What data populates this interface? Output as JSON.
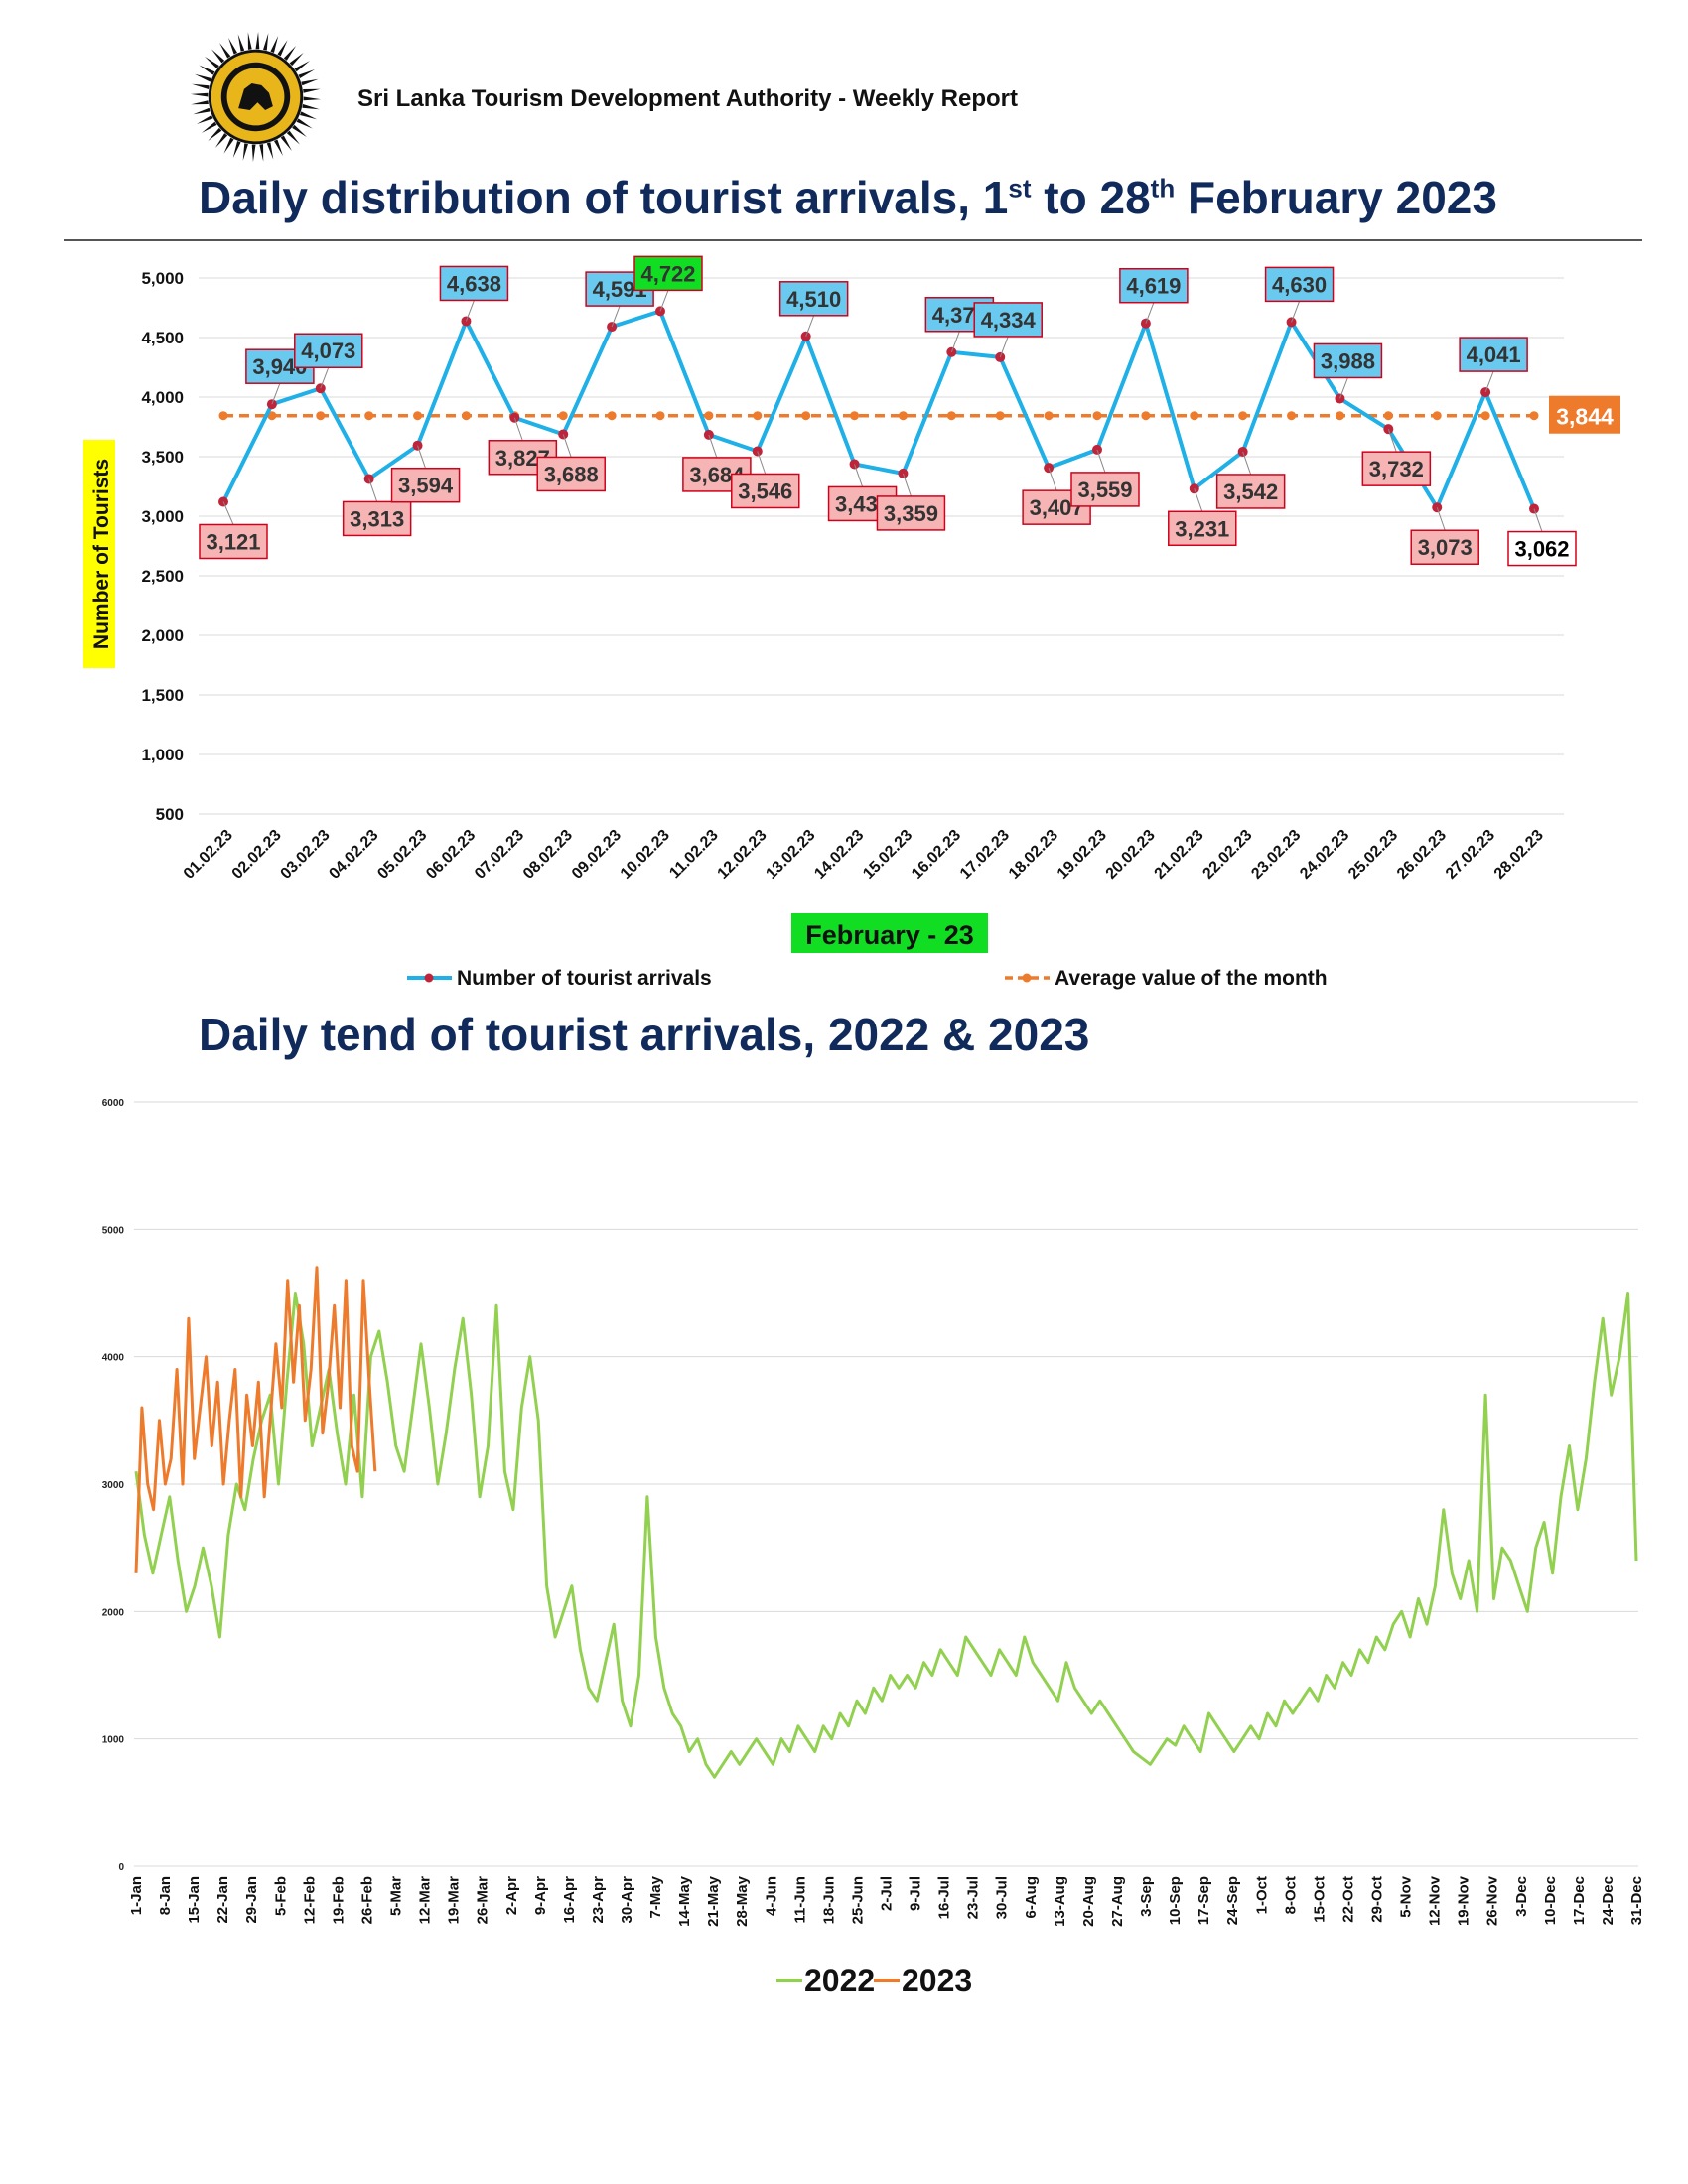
{
  "header": {
    "report_title": "Sri Lanka Tourism Development Authority - Weekly Report",
    "logo_text": "SRI LANKA TOURISM DEVELOPMENT AUTHORITY",
    "title1_pre": "Daily distribution of tourist arrivals, 1",
    "title1_sup1": "st",
    "title1_mid": " to 28",
    "title1_sup2": "th",
    "title1_post": " February 2023",
    "title2": "Daily tend of tourist arrivals, 2022 & 2023"
  },
  "colors": {
    "navy": "#102a5c",
    "arrivals_line": "#1fb0e8",
    "marker": "#c0243b",
    "average": "#ee7a2c",
    "high_box": "#69c9ef",
    "low_box": "#f6b4b4",
    "max_box": "#11dd22",
    "min_box": "#ffffff",
    "line_2022": "#92d050",
    "line_2023": "#ee7a2c"
  },
  "chart_data": [
    {
      "type": "line",
      "title": "Daily distribution of tourist arrivals, 1st to 28th February 2023",
      "xlabel": "February - 23",
      "ylabel": "Number of Tourists",
      "ylim": [
        500,
        5000
      ],
      "yticks": [
        "500",
        "1,000",
        "1,500",
        "2,000",
        "2,500",
        "3,000",
        "3,500",
        "4,000",
        "4,500",
        "5,000"
      ],
      "grid": true,
      "legend_placement": "bottom",
      "categories": [
        "01.02.23",
        "02.02.23",
        "03.02.23",
        "04.02.23",
        "05.02.23",
        "06.02.23",
        "07.02.23",
        "08.02.23",
        "09.02.23",
        "10.02.23",
        "11.02.23",
        "12.02.23",
        "13.02.23",
        "14.02.23",
        "15.02.23",
        "16.02.23",
        "17.02.23",
        "18.02.23",
        "19.02.23",
        "20.02.23",
        "21.02.23",
        "22.02.23",
        "23.02.23",
        "24.02.23",
        "25.02.23",
        "26.02.23",
        "27.02.23",
        "28.02.23"
      ],
      "series": [
        {
          "name": "Number of tourist arrivals",
          "values": [
            3121,
            3940,
            4073,
            3313,
            3594,
            4638,
            3827,
            3688,
            4591,
            4722,
            3684,
            3546,
            4510,
            3438,
            3359,
            4377,
            4334,
            3407,
            3559,
            4619,
            3231,
            3542,
            4630,
            3988,
            3732,
            3073,
            4041,
            3062
          ],
          "labels": [
            "3,121",
            "3,940",
            "4,073",
            "3,313",
            "3,594",
            "4,638",
            "3,827",
            "3,688",
            "4,591",
            "4,722",
            "3,684",
            "3,546",
            "4,510",
            "3,438",
            "3,359",
            "4,377",
            "4,334",
            "3,407",
            "3,559",
            "4,619",
            "3,231",
            "3,542",
            "4,630",
            "3,988",
            "3,732",
            "3,073",
            "4,041",
            "3,062"
          ]
        },
        {
          "name": "Average value of the month",
          "value": 3844,
          "label": "3,844"
        }
      ]
    },
    {
      "type": "line",
      "title": "Daily tend of tourist arrivals, 2022 & 2023",
      "ylim": [
        0,
        6000
      ],
      "yticks": [
        "0",
        "1000",
        "2000",
        "3000",
        "4000",
        "5000",
        "6000"
      ],
      "grid": true,
      "legend_placement": "bottom",
      "xticks": [
        "1-Jan",
        "8-Jan",
        "15-Jan",
        "22-Jan",
        "29-Jan",
        "5-Feb",
        "12-Feb",
        "19-Feb",
        "26-Feb",
        "5-Mar",
        "12-Mar",
        "19-Mar",
        "26-Mar",
        "2-Apr",
        "9-Apr",
        "16-Apr",
        "23-Apr",
        "30-Apr",
        "7-May",
        "14-May",
        "21-May",
        "28-May",
        "4-Jun",
        "11-Jun",
        "18-Jun",
        "25-Jun",
        "2-Jul",
        "9-Jul",
        "16-Jul",
        "23-Jul",
        "30-Jul",
        "6-Aug",
        "13-Aug",
        "20-Aug",
        "27-Aug",
        "3-Sep",
        "10-Sep",
        "17-Sep",
        "24-Sep",
        "1-Oct",
        "8-Oct",
        "15-Oct",
        "22-Oct",
        "29-Oct",
        "5-Nov",
        "12-Nov",
        "19-Nov",
        "26-Nov",
        "3-Dec",
        "10-Dec",
        "17-Dec",
        "24-Dec",
        "31-Dec"
      ],
      "series": [
        {
          "name": "2022",
          "values": [
            3100,
            2600,
            2300,
            2600,
            2900,
            2400,
            2000,
            2200,
            2500,
            2200,
            1800,
            2600,
            3000,
            2800,
            3200,
            3500,
            3700,
            3000,
            3800,
            4500,
            4100,
            3300,
            3600,
            3900,
            3400,
            3000,
            3700,
            2900,
            4000,
            4200,
            3800,
            3300,
            3100,
            3600,
            4100,
            3600,
            3000,
            3400,
            3900,
            4300,
            3700,
            2900,
            3300,
            4400,
            3100,
            2800,
            3600,
            4000,
            3500,
            2200,
            1800,
            2000,
            2200,
            1700,
            1400,
            1300,
            1600,
            1900,
            1300,
            1100,
            1500,
            2900,
            1800,
            1400,
            1200,
            1100,
            900,
            1000,
            800,
            700,
            800,
            900,
            800,
            900,
            1000,
            900,
            800,
            1000,
            900,
            1100,
            1000,
            900,
            1100,
            1000,
            1200,
            1100,
            1300,
            1200,
            1400,
            1300,
            1500,
            1400,
            1500,
            1400,
            1600,
            1500,
            1700,
            1600,
            1500,
            1800,
            1700,
            1600,
            1500,
            1700,
            1600,
            1500,
            1800,
            1600,
            1500,
            1400,
            1300,
            1600,
            1400,
            1300,
            1200,
            1300,
            1200,
            1100,
            1000,
            900,
            850,
            800,
            900,
            1000,
            950,
            1100,
            1000,
            900,
            1200,
            1100,
            1000,
            900,
            1000,
            1100,
            1000,
            1200,
            1100,
            1300,
            1200,
            1300,
            1400,
            1300,
            1500,
            1400,
            1600,
            1500,
            1700,
            1600,
            1800,
            1700,
            1900,
            2000,
            1800,
            2100,
            1900,
            2200,
            2800,
            2300,
            2100,
            2400,
            2000,
            3700,
            2100,
            2500,
            2400,
            2200,
            2000,
            2500,
            2700,
            2300,
            2900,
            3300,
            2800,
            3200,
            3800,
            4300,
            3700,
            4000,
            4500,
            2400
          ]
        },
        {
          "name": "2023",
          "values": [
            2300,
            3600,
            3000,
            2800,
            3500,
            3000,
            3200,
            3900,
            3000,
            4300,
            3200,
            3600,
            4000,
            3300,
            3800,
            3000,
            3500,
            3900,
            2900,
            3700,
            3300,
            3800,
            2900,
            3500,
            4100,
            3600,
            4600,
            3800,
            4400,
            3500,
            3900,
            4700,
            3400,
            3800,
            4400,
            3600,
            4600,
            3300,
            3100,
            4600,
            3800,
            3100
          ]
        }
      ]
    }
  ]
}
